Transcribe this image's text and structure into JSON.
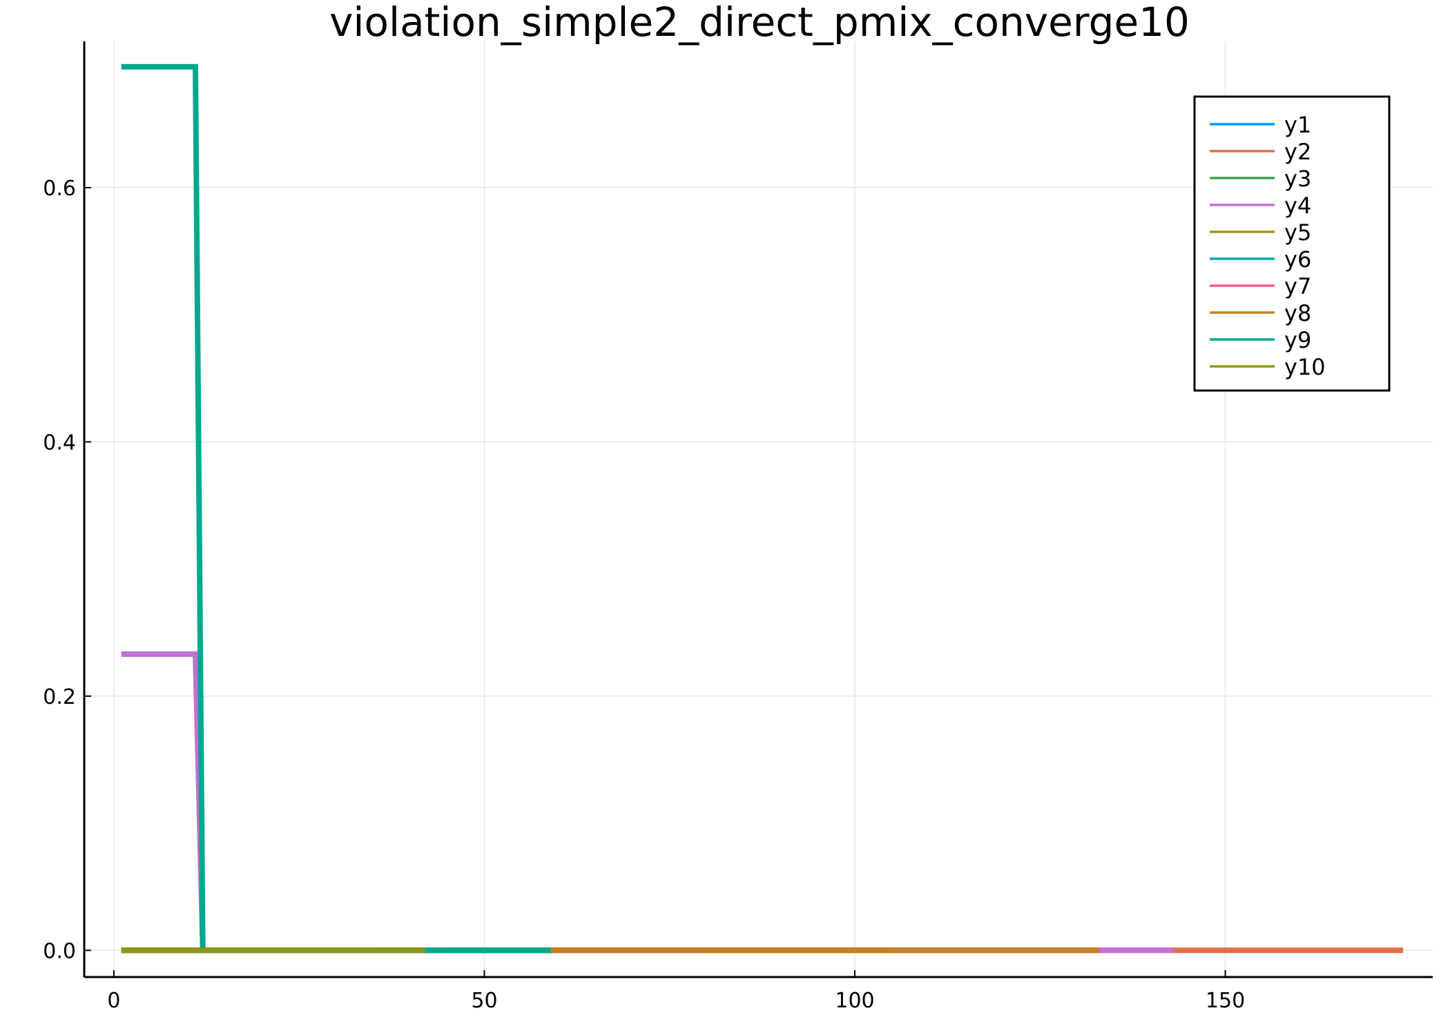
{
  "chart_data": {
    "type": "line",
    "title": "violation_simple2_direct_pmix_converge10",
    "xlabel": "",
    "ylabel": "",
    "xlim": [
      -4,
      178
    ],
    "ylim": [
      -0.021,
      0.715
    ],
    "x_ticks": [
      0,
      50,
      100,
      150
    ],
    "y_ticks": [
      0.0,
      0.2,
      0.4,
      0.6
    ],
    "x_tick_labels": [
      "0",
      "50",
      "100",
      "150"
    ],
    "y_tick_labels": [
      "0.0",
      "0.2",
      "0.4",
      "0.6"
    ],
    "grid": true,
    "legend_position": "top-right",
    "series": [
      {
        "name": "y1",
        "color": "#009af9",
        "x": [
          1,
          80
        ],
        "y": [
          0,
          0
        ]
      },
      {
        "name": "y2",
        "color": "#e26f46",
        "x": [
          1,
          174
        ],
        "y": [
          0,
          0
        ]
      },
      {
        "name": "y3",
        "color": "#3da44d",
        "x": [
          1,
          50
        ],
        "y": [
          0,
          0
        ]
      },
      {
        "name": "y4",
        "color": "#c271d2",
        "x": [
          1,
          11,
          12,
          143
        ],
        "y": [
          0.233,
          0.233,
          0,
          0
        ]
      },
      {
        "name": "y5",
        "color": "#ac8e18",
        "x": [
          1,
          105
        ],
        "y": [
          0,
          0
        ]
      },
      {
        "name": "y6",
        "color": "#00a9ad",
        "x": [
          1,
          35
        ],
        "y": [
          0,
          0
        ]
      },
      {
        "name": "y7",
        "color": "#ed5e93",
        "x": [
          1,
          45
        ],
        "y": [
          0,
          0
        ]
      },
      {
        "name": "y8",
        "color": "#c68125",
        "x": [
          1,
          133
        ],
        "y": [
          0,
          0
        ]
      },
      {
        "name": "y9",
        "color": "#00a98d",
        "x": [
          1,
          11,
          12,
          59
        ],
        "y": [
          0.695,
          0.695,
          0,
          0
        ]
      },
      {
        "name": "y10",
        "color": "#8e971d",
        "x": [
          1,
          42
        ],
        "y": [
          0,
          0
        ]
      }
    ]
  }
}
